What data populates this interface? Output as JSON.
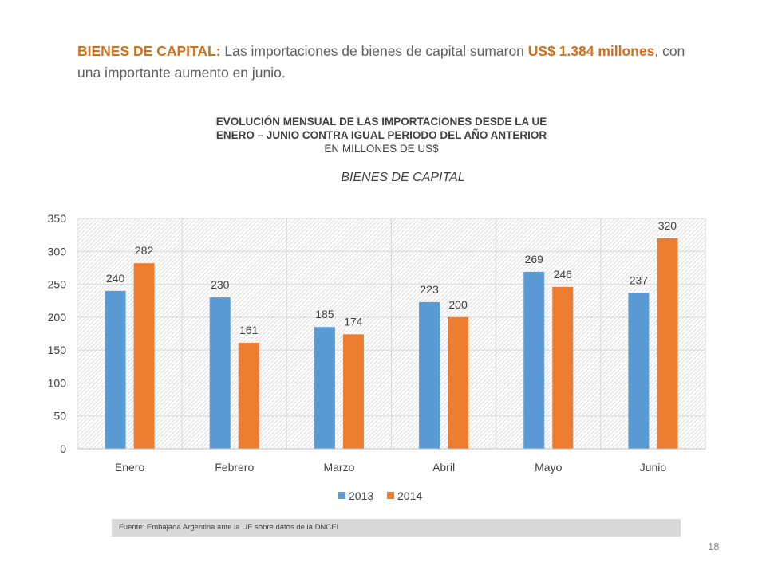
{
  "intro": {
    "label": "BIENES DE CAPITAL:",
    "text_a": " Las importaciones de bienes de capital sumaron ",
    "highlight": "US$ 1.384 millones",
    "text_b": ", con una importante aumento en junio."
  },
  "heading": {
    "line1": "EVOLUCIÓN MENSUAL DE LAS IMPORTACIONES DESDE LA UE",
    "line2": "ENERO – JUNIO CONTRA IGUAL PERIODO DEL AÑO ANTERIOR",
    "line3": "EN MILLONES DE US$"
  },
  "chart_data": {
    "type": "bar",
    "title": "BIENES DE CAPITAL",
    "categories": [
      "Enero",
      "Febrero",
      "Marzo",
      "Abril",
      "Mayo",
      "Junio"
    ],
    "series": [
      {
        "name": "2013",
        "color": "#5b9bd5",
        "values": [
          240,
          230,
          185,
          223,
          269,
          237
        ]
      },
      {
        "name": "2014",
        "color": "#ed7d31",
        "values": [
          282,
          161,
          174,
          200,
          246,
          320
        ]
      }
    ],
    "ylim": [
      0,
      350
    ],
    "yticks": [
      0,
      50,
      100,
      150,
      200,
      250,
      300,
      350
    ],
    "grid": true,
    "legend": "bottom"
  },
  "source": "Fuente: Embajada  Argentina ante la UE sobre datos de la DNCEI",
  "page_number": "18"
}
